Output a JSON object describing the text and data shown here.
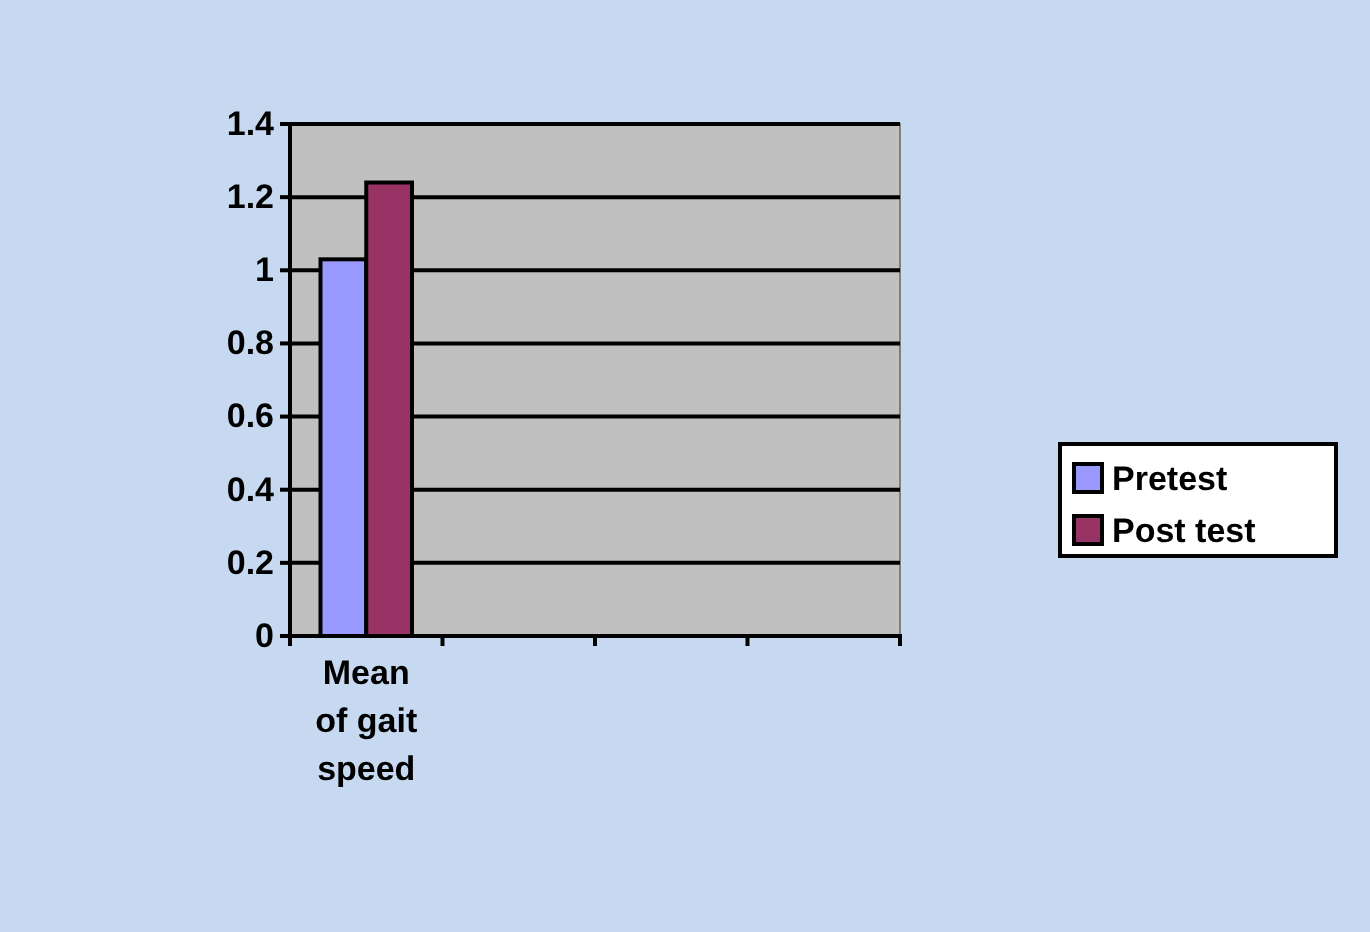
{
  "chart_data": {
    "type": "bar",
    "categories": [
      "Mean of gait speed",
      null,
      null,
      null
    ],
    "series": [
      {
        "name": "Pretest",
        "color": "#9999ff",
        "values": [
          1.03,
          null,
          null,
          null
        ]
      },
      {
        "name": "Post test",
        "color": "#993366",
        "values": [
          1.24,
          null,
          null,
          null
        ]
      }
    ],
    "ylim": [
      0,
      1.4
    ],
    "yticks": [
      0,
      0.2,
      0.4,
      0.6,
      0.8,
      1,
      1.2,
      1.4
    ],
    "grid": "y",
    "legend": "right"
  }
}
